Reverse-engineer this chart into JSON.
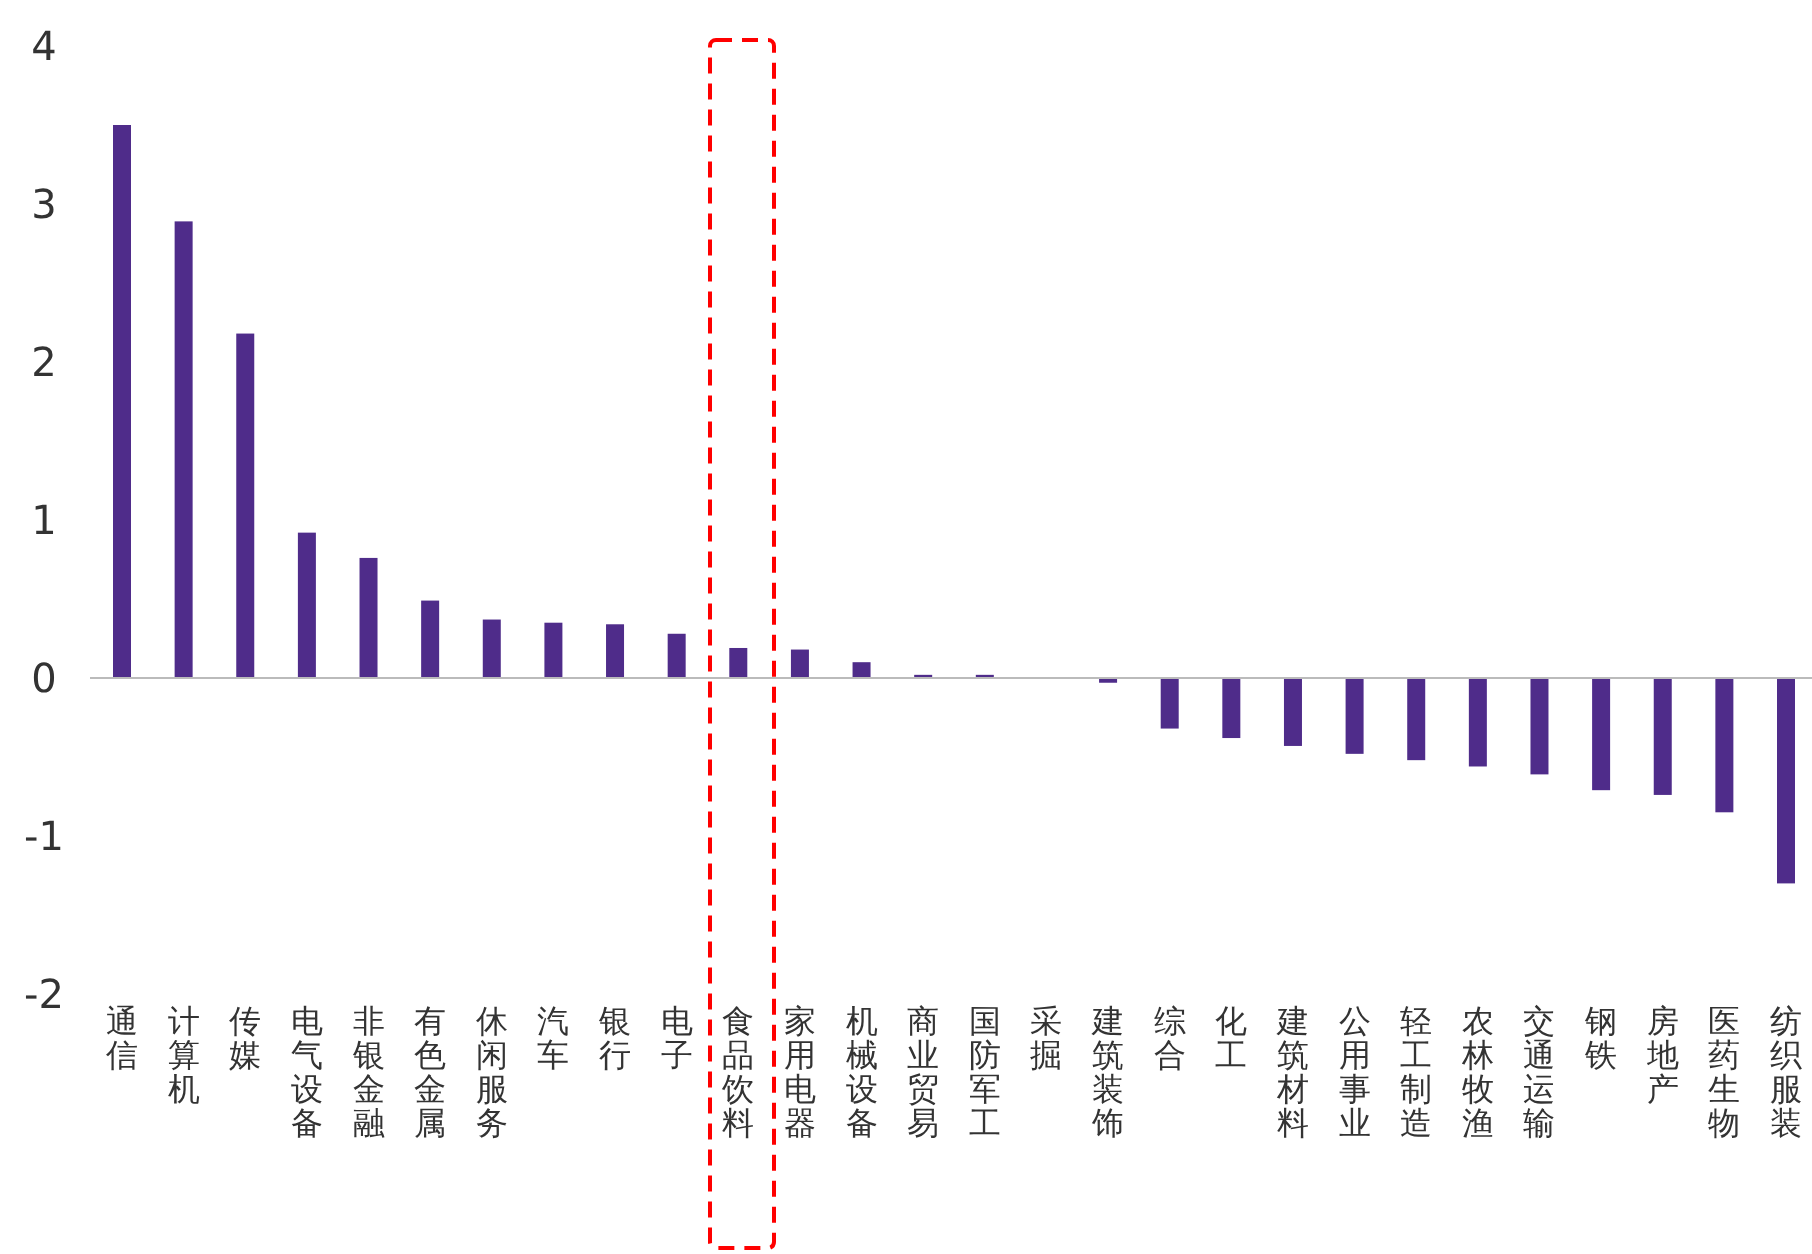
{
  "chart_data": {
    "type": "bar",
    "categories": [
      "通信",
      "计算机",
      "传媒",
      "电气设备",
      "非银金融",
      "有色金属",
      "休闲服务",
      "汽车",
      "银行",
      "电子",
      "食品饮料",
      "家用电器",
      "机械设备",
      "商业贸易",
      "国防军工",
      "采掘",
      "建筑装饰",
      "综合",
      "化工",
      "建筑材料",
      "公用事业",
      "轻工制造",
      "农林牧渔",
      "交通运输",
      "钢铁",
      "房地产",
      "医药生物",
      "纺织服装"
    ],
    "values": [
      3.5,
      2.89,
      2.18,
      0.92,
      0.76,
      0.49,
      0.37,
      0.35,
      0.34,
      0.28,
      0.19,
      0.18,
      0.1,
      0.02,
      0.02,
      0,
      -0.03,
      -0.32,
      -0.38,
      -0.43,
      -0.48,
      -0.52,
      -0.56,
      -0.61,
      -0.71,
      -0.74,
      -0.85,
      -1.3
    ],
    "color": "#4f2c8a",
    "ylim": [
      -2,
      4
    ],
    "yticks": [
      -2,
      -1,
      0,
      1,
      2,
      3,
      4
    ]
  }
}
